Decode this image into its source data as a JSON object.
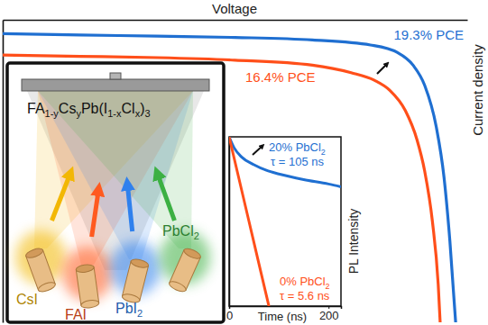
{
  "chart_data": [
    {
      "type": "line",
      "x_label": "Voltage",
      "y_label": "Current density",
      "xlim": [
        0,
        1.2
      ],
      "ylim": [
        0,
        24
      ],
      "xticks": [],
      "yticks": [],
      "tick_labels": false,
      "series": [
        {
          "name": "19.3% PCE",
          "color": "#1f6fd1",
          "x": [
            0,
            0.2,
            0.4,
            0.6,
            0.8,
            0.95,
            1.02,
            1.06,
            1.09,
            1.12,
            1.14,
            1.155,
            1.17
          ],
          "values": [
            22.9,
            22.8,
            22.7,
            22.6,
            22.4,
            22.0,
            21.4,
            20.4,
            18.8,
            15.5,
            11.5,
            6.5,
            0
          ]
        },
        {
          "name": "16.4% PCE",
          "color": "#ff4f1a",
          "x": [
            0,
            0.2,
            0.4,
            0.6,
            0.8,
            0.9,
            0.96,
            1.0,
            1.04,
            1.07,
            1.09,
            1.11,
            1.125,
            1.13
          ],
          "values": [
            21.2,
            21.1,
            21.0,
            20.8,
            20.4,
            19.8,
            19.2,
            18.4,
            16.8,
            14.5,
            12,
            8,
            3,
            0
          ]
        }
      ]
    },
    {
      "type": "line",
      "x_label": "Time (ns)",
      "y_label": "PL Intensity",
      "log": "y",
      "xlim": [
        0,
        225
      ],
      "ylim": [
        0.001,
        1
      ],
      "xticks": [
        0,
        200
      ],
      "yticks": [],
      "tick_labels": "x",
      "series": [
        {
          "name": [
            [
              "20% PbCl",
              "2"
            ]
          ],
          "annotation": "τ = 105 ns",
          "color": "#1f6fd1",
          "x": [
            0,
            10,
            25,
            50,
            75,
            100,
            150,
            200,
            225
          ],
          "values": [
            1,
            0.64,
            0.44,
            0.32,
            0.255,
            0.22,
            0.175,
            0.146,
            0.13
          ]
        },
        {
          "name": [
            [
              "0% PbCl",
              "2"
            ]
          ],
          "annotation": "τ = 5.6 ns",
          "color": "#ff4f1a",
          "x": [
            0,
            20,
            40,
            60,
            80
          ],
          "values": [
            1,
            0.178,
            0.0316,
            0.0056,
            0.001
          ]
        }
      ]
    }
  ],
  "diagram": {
    "formula": [
      [
        "FA",
        "1-y"
      ],
      [
        "Cs",
        "y"
      ],
      [
        "Pb(I",
        "1-x"
      ],
      [
        "Cl",
        "x"
      ],
      [
        ")",
        "3"
      ]
    ],
    "sources": [
      {
        "label": "CsI",
        "color": "#f2b705"
      },
      {
        "label": "FAI",
        "color": "#ff5a1f"
      },
      {
        "label": [
          [
            "PbI",
            "2"
          ]
        ],
        "color": "#2f80ed"
      },
      {
        "label": [
          [
            "PbCl",
            "2"
          ]
        ],
        "color": "#3cb043"
      }
    ]
  }
}
